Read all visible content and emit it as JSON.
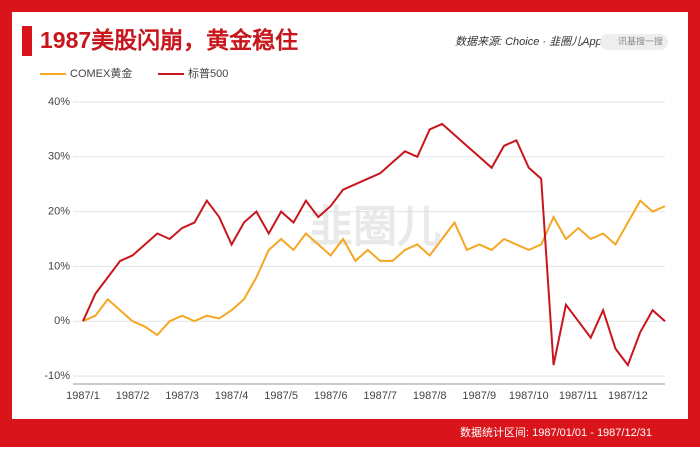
{
  "header": {
    "title": "1987美股闪崩，黄金稳住",
    "source": "数据来源: Choice · 韭圈儿App",
    "search": "讯基搜一搜",
    "watermark": "韭圈儿"
  },
  "footer": {
    "range": "数据统计区间: 1987/01/01 - 1987/12/31"
  },
  "chart_data": {
    "type": "line",
    "categories": [
      "1987/1",
      null,
      null,
      null,
      "1987/2",
      null,
      null,
      null,
      "1987/3",
      null,
      null,
      null,
      "1987/4",
      null,
      null,
      null,
      "1987/5",
      null,
      null,
      null,
      "1987/6",
      null,
      null,
      null,
      "1987/7",
      null,
      null,
      null,
      "1987/8",
      null,
      null,
      null,
      "1987/9",
      null,
      null,
      null,
      "1987/10",
      null,
      null,
      null,
      "1987/11",
      null,
      null,
      null,
      "1987/12",
      null,
      null,
      null
    ],
    "series": [
      {
        "name": "COMEX黄金",
        "color": "#f5a623",
        "values": [
          0,
          1,
          4,
          2,
          0,
          -1,
          -2.5,
          0,
          1,
          0,
          1,
          0.5,
          2,
          4,
          8,
          13,
          15,
          13,
          16,
          14,
          12,
          15,
          11,
          13,
          11,
          11,
          13,
          14,
          12,
          15,
          18,
          13,
          14,
          13,
          15,
          14,
          13,
          14,
          19,
          15,
          17,
          15,
          16,
          14,
          18,
          22,
          20,
          21
        ]
      },
      {
        "name": "标普500",
        "color": "#c8161d",
        "values": [
          0,
          5,
          8,
          11,
          12,
          14,
          16,
          15,
          17,
          18,
          22,
          19,
          14,
          18,
          20,
          16,
          20,
          18,
          22,
          19,
          21,
          24,
          25,
          26,
          27,
          29,
          31,
          30,
          35,
          36,
          34,
          32,
          30,
          28,
          32,
          33,
          28,
          26,
          -8,
          3,
          0,
          -3,
          2,
          -5,
          -8,
          -2,
          2,
          0
        ]
      }
    ],
    "ylim": [
      -10,
      40
    ],
    "yticks": [
      {
        "value": -10,
        "label": "-10%"
      },
      {
        "value": 0,
        "label": "0%"
      },
      {
        "value": 10,
        "label": "10%"
      },
      {
        "value": 20,
        "label": "20%"
      },
      {
        "value": 30,
        "label": "30%"
      },
      {
        "value": 40,
        "label": "40%"
      }
    ],
    "grid": true
  }
}
